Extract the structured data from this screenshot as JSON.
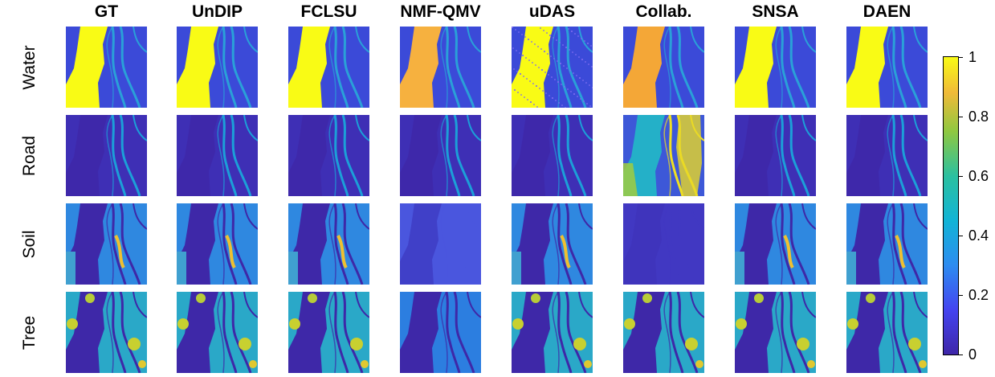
{
  "columns": [
    "GT",
    "UnDIP",
    "FCLSU",
    "NMF-QMV",
    "uDAS",
    "Collab.",
    "SNSA",
    "DAEN"
  ],
  "rows": [
    "Water",
    "Road",
    "Soil",
    "Tree"
  ],
  "colorbar": {
    "ticks": [
      "0",
      "0.2",
      "0.4",
      "0.6",
      "0.8",
      "1"
    ],
    "range": [
      0,
      1
    ],
    "colormap": "parula"
  },
  "colors": {
    "parula_low": "#3e26a8",
    "parula_mid": "#20b2aa",
    "parula_high": "#f9fb15",
    "nmfqmv_water": "#f6b13f",
    "collab_water": "#f4a737"
  }
}
